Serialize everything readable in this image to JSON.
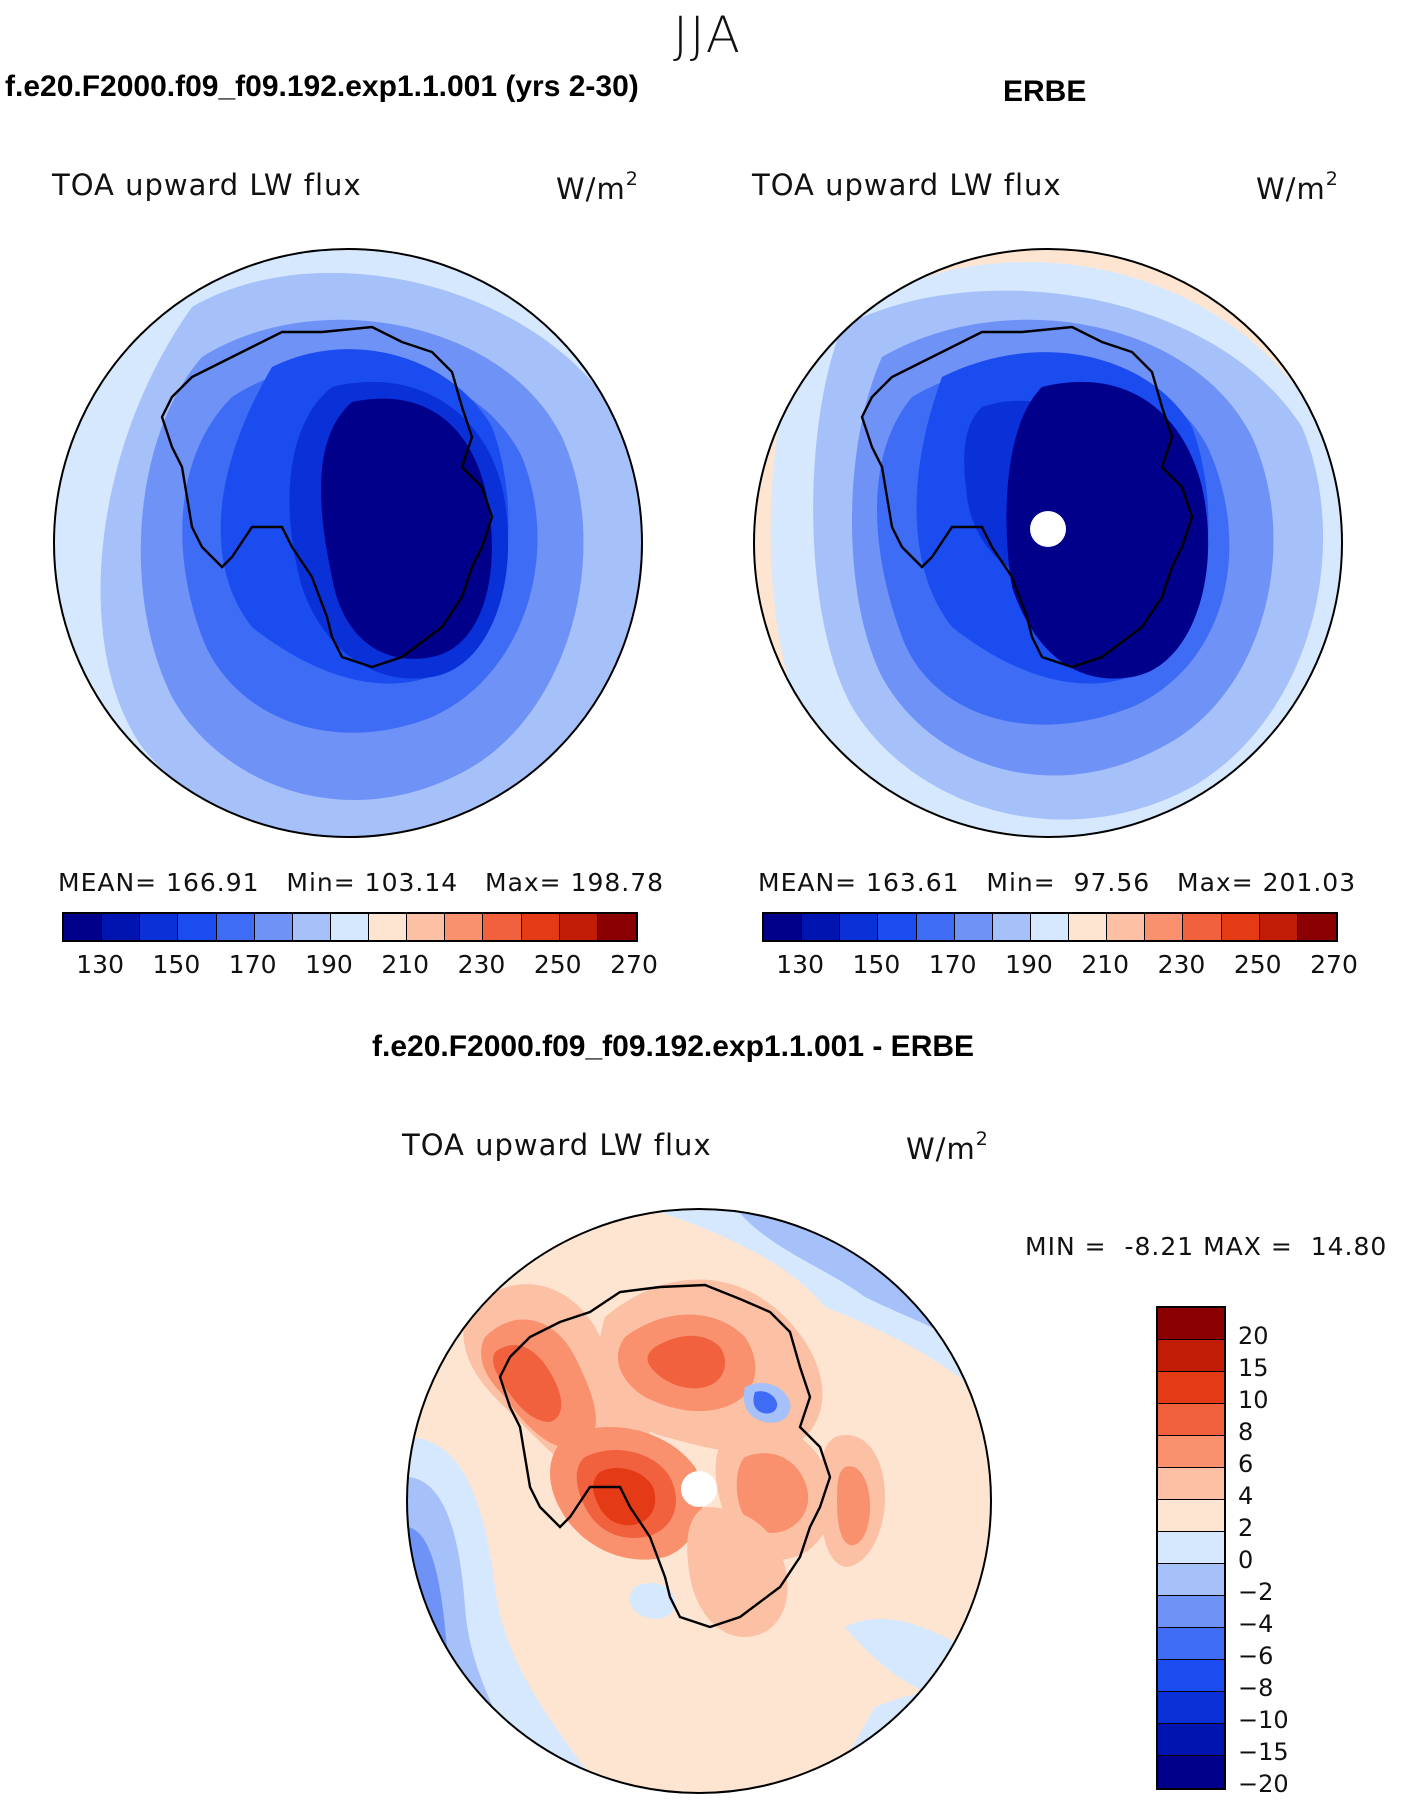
{
  "season": "JJA",
  "panels": {
    "model": {
      "case_title": "f.e20.F2000.f09_f09.192.exp1.1.001 (yrs 2-30)",
      "plot_title": "TOA upward LW flux",
      "units": "W/m",
      "units_exp": "2",
      "mean_label": "MEAN=",
      "mean": "166.91",
      "min_label": "Min=",
      "min": "103.14",
      "max_label": "Max=",
      "max": "198.78"
    },
    "obs": {
      "case_title": "ERBE",
      "plot_title": "TOA upward LW flux",
      "units": "W/m",
      "units_exp": "2",
      "mean_label": "MEAN=",
      "mean": "163.61",
      "min_label": "Min=",
      "min": "97.56",
      "max_label": "Max=",
      "max": "201.03"
    },
    "diff": {
      "case_title": "f.e20.F2000.f09_f09.192.exp1.1.001 - ERBE",
      "plot_title": "TOA upward LW flux",
      "units": "W/m",
      "units_exp": "2",
      "min_label": "MIN =",
      "min": "-8.21",
      "max_label": "MAX =",
      "max": "14.80"
    }
  },
  "abs_colorbar": {
    "colors": [
      "#00008b",
      "#0015b0",
      "#0a30d8",
      "#1a4cf0",
      "#3f6cf5",
      "#6f92f7",
      "#a6c0fa",
      "#d6e8fd",
      "#fde5d2",
      "#fcc0a4",
      "#f9916e",
      "#f2613e",
      "#e43a16",
      "#c11c06",
      "#8b0000"
    ],
    "tick_labels": [
      "130",
      "150",
      "170",
      "190",
      "210",
      "230",
      "250",
      "270"
    ]
  },
  "diff_colorbar": {
    "colors": [
      "#8b0000",
      "#c11c06",
      "#e43a16",
      "#f2613e",
      "#f9916e",
      "#fcc0a4",
      "#fde5d2",
      "#d6e8fd",
      "#a6c0fa",
      "#6f92f7",
      "#3f6cf5",
      "#1a4cf0",
      "#0a30d8",
      "#0015b0",
      "#00008b"
    ],
    "tick_labels": [
      "20",
      "15",
      "10",
      "8",
      "6",
      "4",
      "2",
      "0",
      "−2",
      "−4",
      "−6",
      "−8",
      "−10",
      "−15",
      "−20"
    ]
  }
}
